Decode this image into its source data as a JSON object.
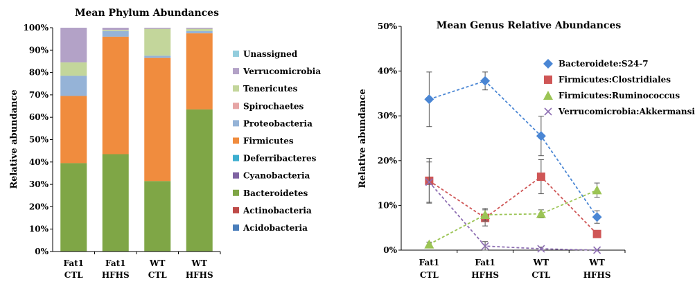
{
  "chart_data": [
    {
      "type": "bar",
      "stacked": true,
      "title": "Mean Phylum Abundances",
      "ylabel": "Relative abundance",
      "ylim": [
        0,
        100
      ],
      "yticks": [
        "0%",
        "10%",
        "20%",
        "30%",
        "40%",
        "50%",
        "60%",
        "70%",
        "80%",
        "90%",
        "100%"
      ],
      "categories": [
        [
          "Fat1",
          "CTL"
        ],
        [
          "Fat1",
          "HFHS"
        ],
        [
          "WT",
          "CTL"
        ],
        [
          "WT",
          "HFHS"
        ]
      ],
      "legend_position": "right",
      "legend_order": [
        "Unassigned",
        "Verrucomicrobia",
        "Tenericutes",
        "Spirochaetes",
        "Proteobacteria",
        "Firmicutes",
        "Deferribacteres",
        "Cyanobacteria",
        "Bacteroidetes",
        "Actinobacteria",
        "Acidobacteria"
      ],
      "series": [
        {
          "name": "Acidobacteria",
          "color": "#4a7ebb",
          "values": [
            0,
            0,
            0,
            0
          ]
        },
        {
          "name": "Actinobacteria",
          "color": "#be4b48",
          "values": [
            0,
            0,
            0,
            0
          ]
        },
        {
          "name": "Bacteroidetes",
          "color": "#7fa646",
          "values": [
            39.5,
            43.5,
            31.5,
            63.5
          ]
        },
        {
          "name": "Cyanobacteria",
          "color": "#7f63a2",
          "values": [
            0,
            0,
            0,
            0
          ]
        },
        {
          "name": "Deferribacteres",
          "color": "#3caecf",
          "values": [
            0,
            0,
            0,
            0
          ]
        },
        {
          "name": "Firmicutes",
          "color": "#f08c3e",
          "values": [
            30,
            52.5,
            55,
            34
          ]
        },
        {
          "name": "Proteobacteria",
          "color": "#95b3d7",
          "values": [
            9,
            2.5,
            1,
            1
          ]
        },
        {
          "name": "Spirochaetes",
          "color": "#e6a5a5",
          "values": [
            0,
            0,
            0,
            0
          ]
        },
        {
          "name": "Tenericutes",
          "color": "#c3d69b",
          "values": [
            6,
            0.5,
            12,
            1
          ]
        },
        {
          "name": "Verrucomicrobia",
          "color": "#b3a2c7",
          "values": [
            15.5,
            1,
            0.5,
            0.5
          ]
        },
        {
          "name": "Unassigned",
          "color": "#93cddd",
          "values": [
            0,
            0,
            0,
            0
          ]
        }
      ]
    },
    {
      "type": "line",
      "title": "Mean Genus Relative Abundances",
      "ylabel": "Relative abundance",
      "ylim": [
        0,
        50
      ],
      "yticks": [
        "0%",
        "10%",
        "20%",
        "30%",
        "40%",
        "50%"
      ],
      "categories": [
        [
          "Fat1",
          "CTL"
        ],
        [
          "Fat1",
          "HFHS"
        ],
        [
          "WT",
          "CTL"
        ],
        [
          "WT",
          "HFHS"
        ]
      ],
      "legend_position": "top-right",
      "series": [
        {
          "name": "Bacteroidete:S24-7",
          "color": "#4a86d4",
          "marker": "diamond",
          "values": [
            33.7,
            37.8,
            25.5,
            7.4
          ],
          "err": [
            6.1,
            2.0,
            4.4,
            1.4
          ]
        },
        {
          "name": "Firmicutes:Clostridiales",
          "color": "#cf5656",
          "marker": "square",
          "values": [
            15.5,
            7.2,
            16.4,
            3.6
          ],
          "err": [
            5.0,
            1.8,
            3.8,
            0.8
          ]
        },
        {
          "name": "Firmicutes:Ruminococcus",
          "color": "#9bc454",
          "marker": "triangle",
          "values": [
            1.3,
            7.9,
            8.1,
            13.4
          ],
          "err": [
            0.5,
            1.4,
            0.9,
            1.6
          ]
        },
        {
          "name": "Verrucomicrobia:Akkermansia",
          "color": "#8e6fb3",
          "marker": "x",
          "values": [
            15.2,
            0.9,
            0.3,
            0.0
          ],
          "err": [
            4.5,
            1.0,
            0.4,
            0.0
          ]
        }
      ]
    }
  ]
}
